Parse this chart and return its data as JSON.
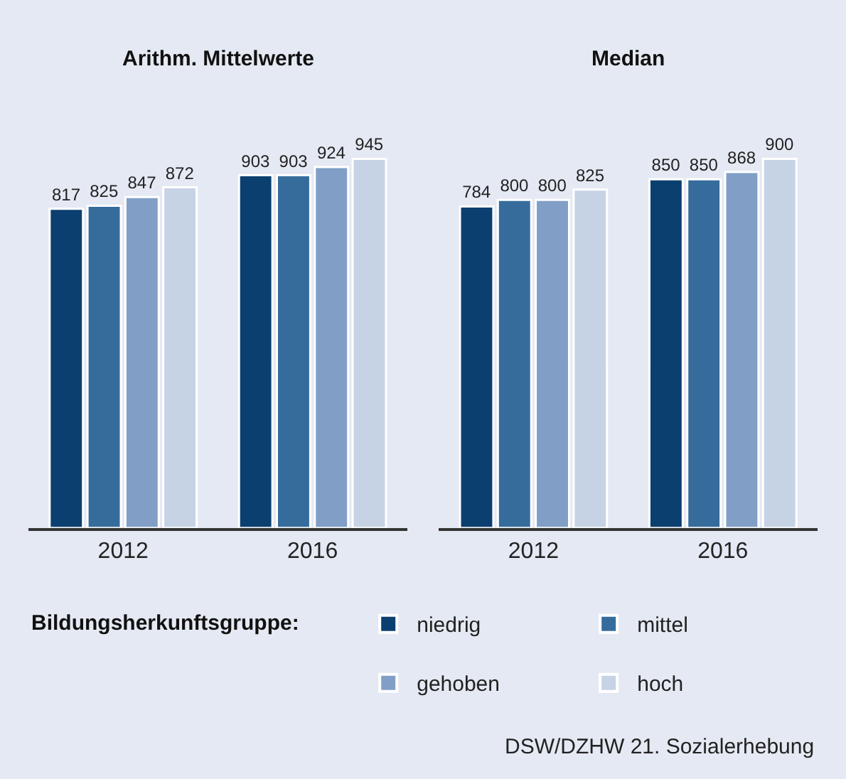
{
  "chart_data": [
    {
      "type": "bar",
      "title": "Arithm. Mittelwerte",
      "categories": [
        "2012",
        "2016"
      ],
      "series": [
        {
          "name": "niedrig",
          "color": "#0b3f6f",
          "values": [
            817,
            903
          ]
        },
        {
          "name": "mittel",
          "color": "#356c9c",
          "values": [
            825,
            903
          ]
        },
        {
          "name": "gehoben",
          "color": "#819fc6",
          "values": [
            847,
            924
          ]
        },
        {
          "name": "hoch",
          "color": "#c6d3e5",
          "values": [
            872,
            945
          ]
        }
      ],
      "data_labels": true,
      "tick_labels": "x",
      "legend": "bottom",
      "legend_title": "Bildungsherkunftsgruppe:",
      "annotations": [
        "DSW/DZHW 21. Sozialerhebung"
      ]
    },
    {
      "type": "bar",
      "title": "Median",
      "categories": [
        "2012",
        "2016"
      ],
      "series": [
        {
          "color": "#0b3f6f",
          "values": [
            784,
            850
          ]
        },
        {
          "color": "#356c9c",
          "values": [
            800,
            850
          ]
        },
        {
          "color": "#819fc6",
          "values": [
            800,
            868
          ]
        },
        {
          "color": "#c6d3e5",
          "values": [
            825,
            900
          ]
        }
      ],
      "data_labels": true,
      "tick_labels": "x"
    }
  ]
}
